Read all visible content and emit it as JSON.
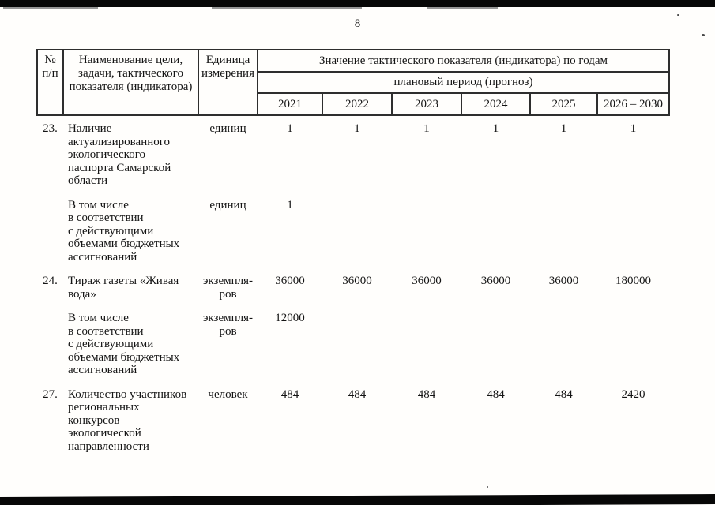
{
  "page": {
    "number": "8"
  },
  "table": {
    "header": {
      "col_num": "№\nп/п",
      "col_name": "Наименование цели,\nзадачи, тактического\nпоказателя (индикатора)",
      "col_unit": "Единица\nизмерения",
      "group_years": "Значение тактического показателя (индикатора) по годам",
      "group_plan": "плановый период (прогноз)",
      "years": [
        "2021",
        "2022",
        "2023",
        "2024",
        "2025",
        "2026 – 2030"
      ]
    },
    "rows": [
      {
        "num": "23.",
        "name": "Наличие\nактуализированного\nэкологического\nпаспорта Самарской\nобласти",
        "unit": "единиц",
        "values": [
          "1",
          "1",
          "1",
          "1",
          "1",
          "1"
        ]
      },
      {
        "num": "",
        "name": "В том числе\nв соответствии\nс действующими\nобъемами бюджетных\nассигнований",
        "unit": "единиц",
        "values": [
          "1",
          "",
          "",
          "",
          "",
          ""
        ]
      },
      {
        "num": "24.",
        "name": "Тираж газеты «Живая\nвода»",
        "unit": "экземпля-\nров",
        "values": [
          "36000",
          "36000",
          "36000",
          "36000",
          "36000",
          "180000"
        ]
      },
      {
        "num": "",
        "name": "В том числе\nв соответствии\nс действующими\nобъемами бюджетных\nассигнований",
        "unit": "экземпля-\nров",
        "values": [
          "12000",
          "",
          "",
          "",
          "",
          ""
        ]
      },
      {
        "num": "27.",
        "name": "Количество участников\nрегиональных\nконкурсов\nэкологической\nнаправленности",
        "unit": "человек",
        "values": [
          "484",
          "484",
          "484",
          "484",
          "484",
          "2420"
        ]
      }
    ]
  }
}
